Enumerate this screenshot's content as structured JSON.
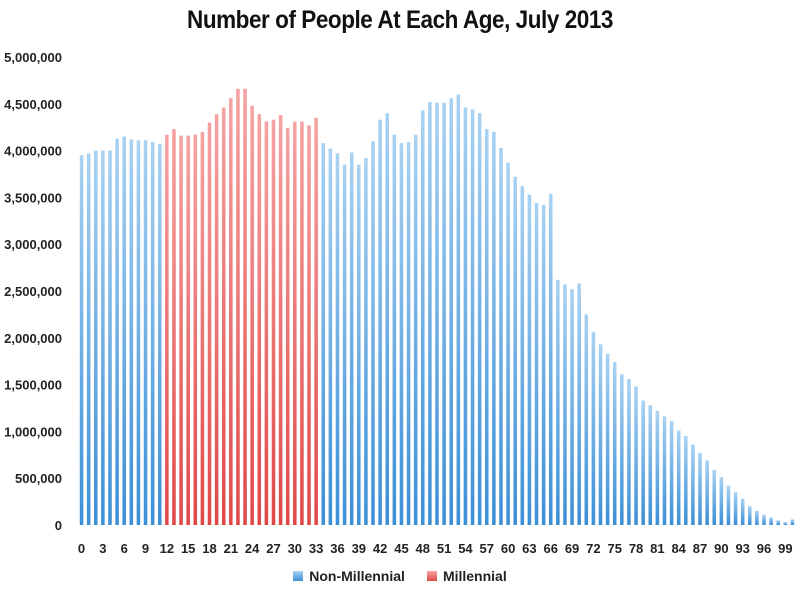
{
  "chart_data": {
    "type": "bar",
    "title": "Number of People At Each Age, July 2013",
    "xlabel": "",
    "ylabel": "",
    "ylim": [
      0,
      5000000
    ],
    "yticks": [
      "0",
      "500,000",
      "1,000,000",
      "1,500,000",
      "2,000,000",
      "2,500,000",
      "3,000,000",
      "3,500,000",
      "4,000,000",
      "4,500,000",
      "5,000,000"
    ],
    "xtick_labels": [
      "0",
      "3",
      "6",
      "9",
      "12",
      "15",
      "18",
      "21",
      "24",
      "27",
      "30",
      "33",
      "36",
      "39",
      "42",
      "45",
      "48",
      "51",
      "54",
      "57",
      "60",
      "63",
      "66",
      "69",
      "72",
      "75",
      "78",
      "81",
      "84",
      "87",
      "90",
      "93",
      "96",
      "99"
    ],
    "categories_start": 0,
    "categories_end": 100,
    "millennial_range": [
      12,
      33
    ],
    "values": [
      3950000,
      3970000,
      4000000,
      4000000,
      4000000,
      4130000,
      4150000,
      4120000,
      4110000,
      4110000,
      4090000,
      4070000,
      4170000,
      4230000,
      4160000,
      4160000,
      4170000,
      4200000,
      4300000,
      4390000,
      4460000,
      4560000,
      4660000,
      4660000,
      4480000,
      4390000,
      4310000,
      4330000,
      4380000,
      4240000,
      4310000,
      4310000,
      4270000,
      4350000,
      4080000,
      4020000,
      3970000,
      3850000,
      3980000,
      3850000,
      3920000,
      4100000,
      4330000,
      4400000,
      4170000,
      4080000,
      4090000,
      4170000,
      4430000,
      4520000,
      4510000,
      4510000,
      4560000,
      4600000,
      4460000,
      4440000,
      4400000,
      4230000,
      4200000,
      4030000,
      3870000,
      3720000,
      3620000,
      3530000,
      3440000,
      3420000,
      3540000,
      2620000,
      2570000,
      2520000,
      2580000,
      2250000,
      2060000,
      1930000,
      1830000,
      1740000,
      1610000,
      1560000,
      1480000,
      1330000,
      1280000,
      1220000,
      1160000,
      1110000,
      1010000,
      950000,
      860000,
      770000,
      690000,
      590000,
      510000,
      420000,
      350000,
      280000,
      200000,
      150000,
      110000,
      80000,
      50000,
      30000,
      60000
    ],
    "legend": [
      {
        "name": "Non-Millennial",
        "color": "#7db8e8"
      },
      {
        "name": "Millennial",
        "color": "#f08080"
      }
    ],
    "legend_position": "bottom",
    "grid": false
  }
}
